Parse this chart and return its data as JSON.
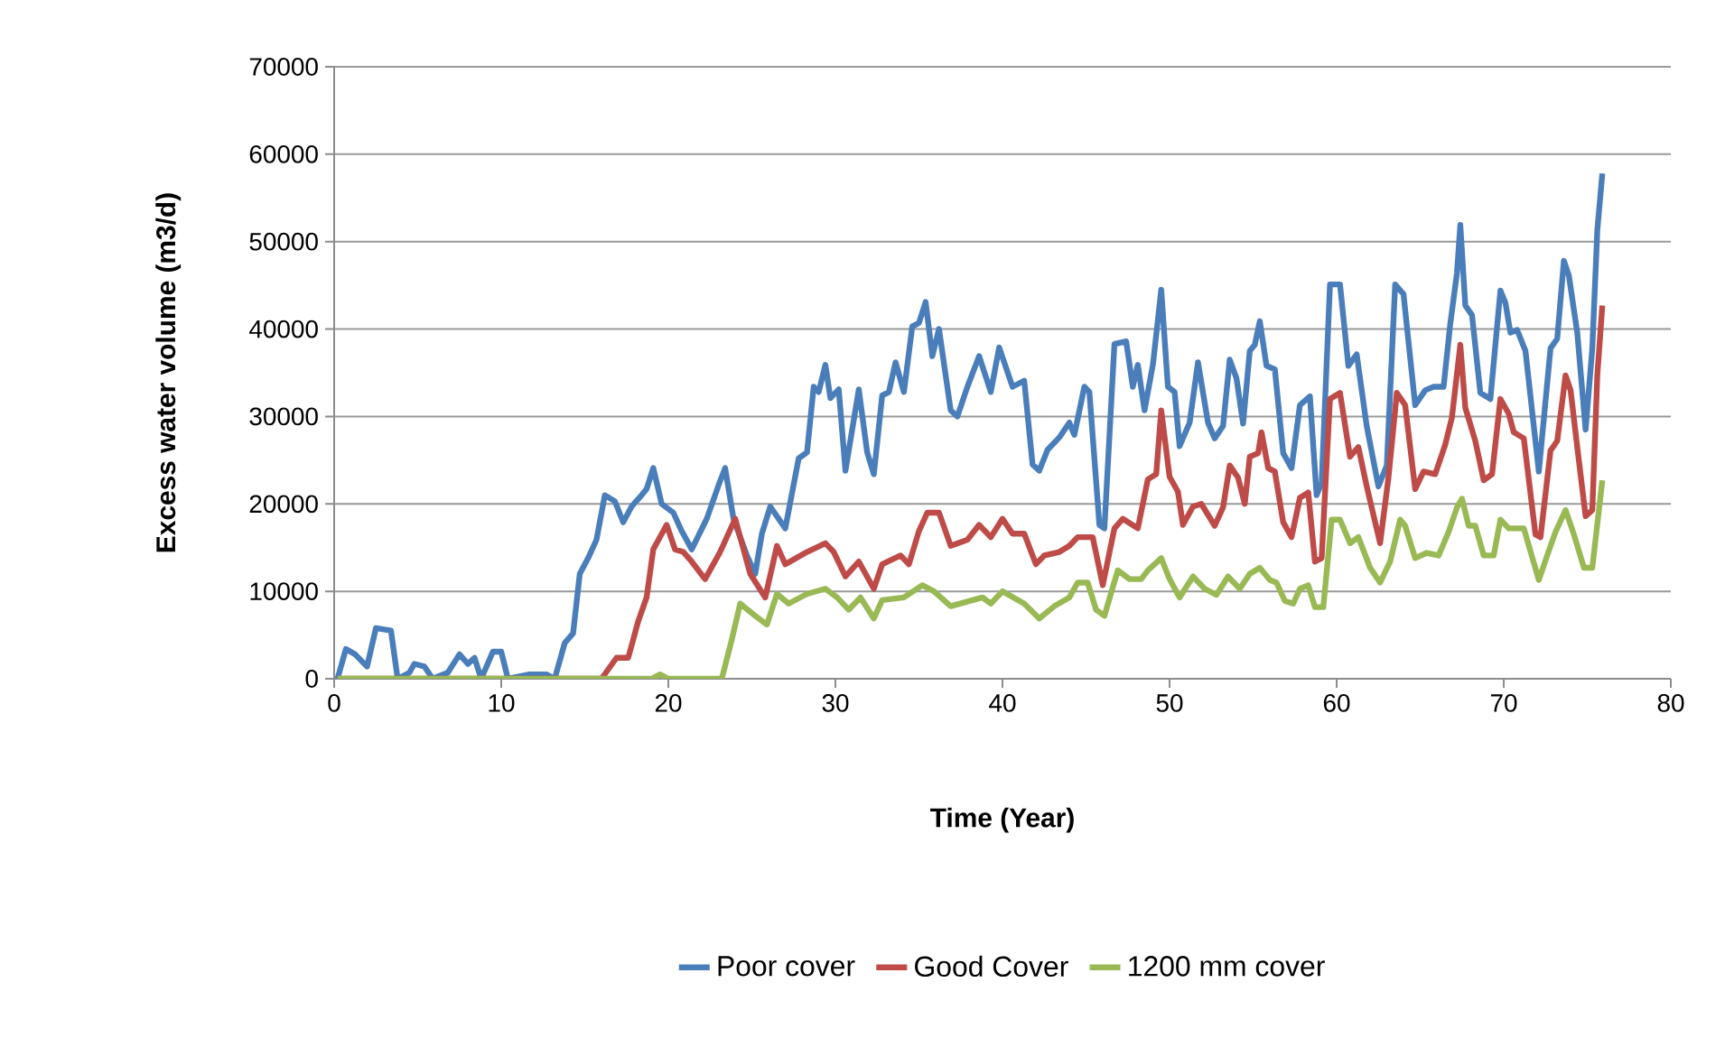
{
  "chart_data": {
    "type": "line",
    "xlabel": "Time (Year)",
    "ylabel": "Excess water volume (m3/d)",
    "xlim": [
      0,
      80
    ],
    "xticks": [
      0,
      10,
      20,
      30,
      40,
      50,
      60,
      70,
      80
    ],
    "ylim": [
      0,
      70000
    ],
    "yticks": [
      0,
      10000,
      20000,
      30000,
      40000,
      50000,
      60000,
      70000
    ],
    "grid": "y",
    "legend": "bottom",
    "marker": "none",
    "line_style": "solid",
    "series": [
      {
        "name": "Poor cover",
        "color": "#4a7ebb",
        "x": [
          0.2,
          0.7,
          1.25,
          1.97,
          2.5,
          3.4,
          3.8,
          4.5,
          4.8,
          5.4,
          5.9,
          6.8,
          7.5,
          8,
          8.4,
          8.8,
          9.5,
          10,
          10.4,
          11.7,
          12.7,
          13.2,
          13.8,
          14.3,
          14.7,
          15.2,
          15.7,
          16.2,
          16.8,
          17.3,
          17.8,
          18.4,
          18.7,
          19.1,
          19.6,
          20.3,
          20.8,
          21.4,
          22.3,
          23,
          23.4,
          23.9,
          24.7,
          25.2,
          25.6,
          26.1,
          27,
          27.8,
          28.3,
          28.7,
          29,
          29.4,
          29.7,
          30.2,
          30.6,
          31.4,
          31.9,
          32.3,
          32.8,
          33.2,
          33.6,
          34.1,
          34.6,
          35,
          35.4,
          35.8,
          36.2,
          36.9,
          37.3,
          37.9,
          38.6,
          39.3,
          39.8,
          40.6,
          41.3,
          41.8,
          42.2,
          42.7,
          43.4,
          44,
          44.3,
          44.9,
          45.2,
          45.8,
          46.1,
          46.7,
          47.4,
          47.8,
          48.1,
          48.5,
          49,
          49.5,
          49.9,
          50.3,
          50.6,
          51.2,
          51.7,
          52.3,
          52.7,
          53.2,
          53.6,
          54,
          54.4,
          54.8,
          55.1,
          55.4,
          55.8,
          56.3,
          56.8,
          57.3,
          57.8,
          58.4,
          58.8,
          59.1,
          59.6,
          60.2,
          60.7,
          61.2,
          61.8,
          62.5,
          63,
          63.5,
          64,
          64.7,
          65.3,
          65.8,
          66.4,
          66.8,
          67.2,
          67.4,
          67.7,
          68.1,
          68.6,
          69.2,
          69.8,
          70.1,
          70.4,
          70.8,
          71.3,
          72.1,
          72.8,
          73.2,
          73.6,
          73.9,
          74.4,
          74.9,
          75.3,
          75.6,
          75.9
        ],
        "values": [
          0,
          3400,
          2800,
          1400,
          5800,
          5500,
          0,
          700,
          1700,
          1400,
          0,
          700,
          2800,
          1700,
          2400,
          0,
          3100,
          3100,
          0,
          500,
          500,
          0,
          4100,
          5200,
          12000,
          13800,
          15900,
          21000,
          20300,
          17900,
          19700,
          21000,
          21700,
          24100,
          20000,
          19000,
          16900,
          14800,
          18300,
          22100,
          24100,
          18300,
          14100,
          12000,
          16600,
          19700,
          17200,
          25200,
          25900,
          33400,
          32800,
          35900,
          32100,
          33100,
          23800,
          33100,
          25900,
          23400,
          32400,
          32800,
          36200,
          32800,
          40300,
          40700,
          43100,
          36900,
          40000,
          30700,
          30000,
          33400,
          36900,
          32800,
          37900,
          33400,
          34100,
          24500,
          23800,
          26200,
          27600,
          29300,
          27900,
          33400,
          32800,
          17600,
          17200,
          38300,
          38600,
          33400,
          35900,
          30700,
          35900,
          44500,
          33400,
          32800,
          26600,
          29300,
          36200,
          29300,
          27500,
          28900,
          36500,
          34400,
          29200,
          37500,
          38200,
          40900,
          35800,
          35400,
          25800,
          24100,
          31300,
          32300,
          21000,
          22400,
          45100,
          45100,
          35800,
          37100,
          28900,
          22000,
          24400,
          45100,
          44000,
          31300,
          33000,
          33400,
          33400,
          40600,
          46400,
          51900,
          42700,
          41600,
          32700,
          32000,
          44400,
          43000,
          39600,
          39900,
          37500,
          23700,
          37800,
          38900,
          47800,
          46100,
          39600,
          28500,
          37800,
          51300,
          57800
        ]
      },
      {
        "name": "Good Cover",
        "color": "#be4b48",
        "x": [
          0.2,
          16,
          16.9,
          17.6,
          18.2,
          18.7,
          19.1,
          19.5,
          19.9,
          20.4,
          20.9,
          21.4,
          22.2,
          23.1,
          24,
          24.9,
          25.8,
          26.5,
          27,
          28.3,
          29.4,
          29.9,
          30.6,
          31.4,
          32.3,
          32.8,
          33.9,
          34.4,
          35,
          35.5,
          36.2,
          36.9,
          37.9,
          38.6,
          39.3,
          40,
          40.6,
          41.3,
          42,
          42.5,
          43.4,
          44,
          44.5,
          45.4,
          46,
          46.7,
          47.2,
          48.1,
          48.7,
          49.2,
          49.5,
          50,
          50.5,
          50.8,
          51.4,
          51.9,
          52.7,
          53.2,
          53.6,
          54.1,
          54.5,
          54.8,
          55.3,
          55.5,
          55.9,
          56.3,
          56.8,
          57.3,
          57.8,
          58.3,
          58.7,
          59.1,
          59.6,
          60.2,
          60.8,
          61.3,
          61.8,
          62.6,
          63.1,
          63.6,
          64.1,
          64.7,
          65.2,
          65.9,
          66.5,
          66.9,
          67.4,
          67.7,
          68.3,
          68.8,
          69.3,
          69.8,
          70.3,
          70.6,
          71.2,
          71.9,
          72.2,
          72.8,
          73.2,
          73.7,
          74,
          74.4,
          74.9,
          75.3,
          75.6,
          75.9
        ],
        "values": [
          0,
          0,
          2400,
          2400,
          6600,
          9300,
          14800,
          16200,
          17600,
          14800,
          14500,
          13400,
          11400,
          14500,
          18300,
          12000,
          9300,
          15200,
          13100,
          14500,
          15500,
          14500,
          11700,
          13400,
          10300,
          13100,
          14100,
          13100,
          16900,
          19000,
          19000,
          15200,
          15900,
          17600,
          16200,
          18300,
          16600,
          16600,
          13100,
          14100,
          14500,
          15200,
          16200,
          16200,
          10700,
          17200,
          18300,
          17200,
          22800,
          23400,
          30700,
          23100,
          21400,
          17600,
          19700,
          20000,
          17500,
          19600,
          24400,
          23000,
          20000,
          25400,
          25800,
          28200,
          24100,
          23700,
          17900,
          16200,
          20700,
          21300,
          13400,
          13800,
          32000,
          32700,
          25400,
          26500,
          22000,
          15500,
          23000,
          32700,
          31300,
          21700,
          23700,
          23400,
          26800,
          29900,
          38200,
          31000,
          27200,
          22700,
          23400,
          32000,
          30300,
          28200,
          27500,
          16500,
          16200,
          26100,
          27200,
          34700,
          33000,
          26500,
          18600,
          19300,
          34700,
          42700
        ]
      },
      {
        "name": "1200 mm cover",
        "color": "#98b954",
        "x": [
          0.2,
          19,
          19.5,
          20,
          23.2,
          23.8,
          24.3,
          25.2,
          25.9,
          26.5,
          27.2,
          28.3,
          29.4,
          30.1,
          30.8,
          31.5,
          32.3,
          32.8,
          34.1,
          35.2,
          35.9,
          36.9,
          38.8,
          39.3,
          40,
          41.3,
          42.2,
          43.1,
          44,
          44.5,
          45.1,
          45.6,
          46.1,
          46.9,
          47.6,
          48.3,
          48.7,
          49.5,
          50,
          50.6,
          51.4,
          52.1,
          52.8,
          53.5,
          54.2,
          54.8,
          55.4,
          56,
          56.4,
          56.9,
          57.4,
          57.8,
          58.3,
          58.7,
          59.2,
          59.7,
          60.2,
          60.8,
          61.3,
          62,
          62.6,
          63.2,
          63.8,
          64.1,
          64.7,
          65.4,
          66.1,
          66.7,
          67.2,
          67.5,
          67.9,
          68.3,
          68.8,
          69.4,
          69.8,
          70.3,
          71.2,
          72.1,
          72.6,
          73.1,
          73.7,
          74.2,
          74.8,
          75.3,
          75.9
        ],
        "values": [
          0,
          0,
          500,
          0,
          0,
          4500,
          8600,
          7200,
          6200,
          9700,
          8600,
          9700,
          10300,
          9300,
          7900,
          9300,
          6900,
          9000,
          9300,
          10700,
          10000,
          8300,
          9300,
          8600,
          10000,
          8600,
          6900,
          8300,
          9300,
          11000,
          11000,
          7900,
          7200,
          12400,
          11400,
          11400,
          12400,
          13800,
          11400,
          9300,
          11700,
          10300,
          9600,
          11700,
          10300,
          12000,
          12700,
          11300,
          11000,
          8900,
          8600,
          10300,
          10700,
          8200,
          8200,
          18200,
          18200,
          15500,
          16200,
          12700,
          11000,
          13400,
          18200,
          17500,
          13800,
          14400,
          14100,
          16800,
          19600,
          20600,
          17500,
          17500,
          14100,
          14100,
          18200,
          17200,
          17200,
          11300,
          14100,
          16800,
          19300,
          16500,
          12700,
          12700,
          22700
        ]
      }
    ]
  }
}
